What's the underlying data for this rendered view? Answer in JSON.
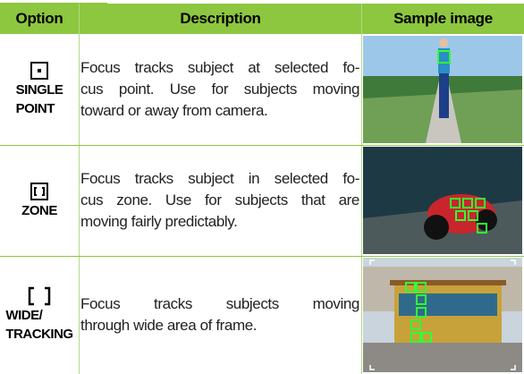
{
  "table": {
    "header": [
      "Option",
      "Description",
      "Sample image"
    ],
    "rows": [
      {
        "option": [
          "SINGLE",
          "POINT"
        ],
        "description": [
          "Focus tracks subject at selected fo-",
          "cus point. Use for subjects moving",
          "toward or away from camera."
        ]
      },
      {
        "option": [
          "ZONE"
        ],
        "description": [
          "Focus tracks subject in selected fo-",
          "cus zone. Use for subjects that are",
          "moving fairly predictably."
        ]
      },
      {
        "option": [
          "WIDE/",
          "TRACKING"
        ],
        "description": [
          "Focus tracks subjects moving",
          "through wide area of frame."
        ]
      }
    ]
  }
}
